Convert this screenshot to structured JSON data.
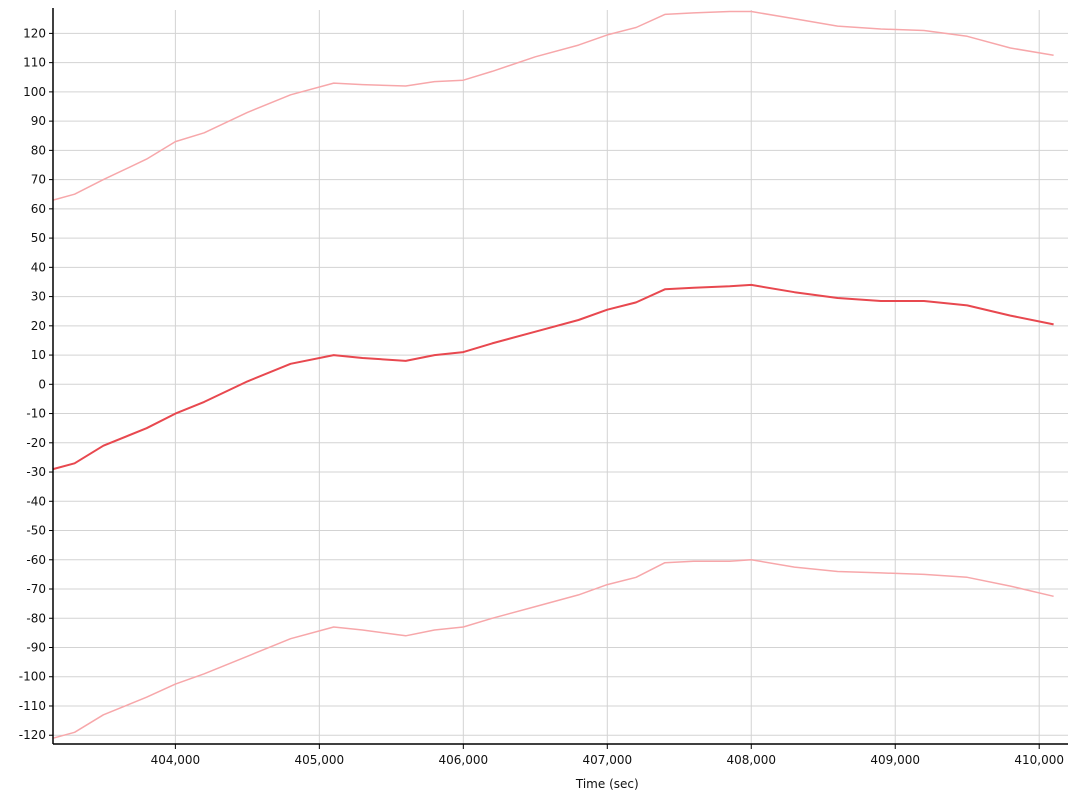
{
  "chart_data": {
    "type": "line",
    "xlabel": "Time (sec)",
    "ylabel": "",
    "xlim": [
      403150,
      410200
    ],
    "ylim": [
      -123,
      128
    ],
    "x_ticks": [
      404000,
      405000,
      406000,
      407000,
      408000,
      409000,
      410000
    ],
    "x_tick_labels": [
      "404,000",
      "405,000",
      "406,000",
      "407,000",
      "408,000",
      "409,000",
      "410,000"
    ],
    "y_ticks": [
      120,
      110,
      100,
      90,
      80,
      70,
      60,
      50,
      40,
      30,
      20,
      10,
      0,
      -10,
      -20,
      -30,
      -40,
      -50,
      -60,
      -70,
      -80,
      -90,
      -100,
      -110,
      -120
    ],
    "grid": true,
    "legend": "none",
    "colors": {
      "primary": "#e8484f",
      "bound": "#f7a7aa",
      "grid": "#d3d3d3",
      "axis": "#000000"
    },
    "x": [
      403150,
      403300,
      403500,
      403800,
      404000,
      404200,
      404500,
      404800,
      405100,
      405300,
      405600,
      405800,
      406000,
      406200,
      406500,
      406800,
      407000,
      407200,
      407400,
      407600,
      407850,
      408000,
      408300,
      408600,
      408900,
      409200,
      409500,
      409800,
      410100
    ],
    "series": [
      {
        "values": [
          63,
          65,
          70,
          77,
          83,
          86,
          93,
          99,
          103,
          102.5,
          102,
          103.5,
          104,
          107,
          112,
          116,
          119.5,
          122,
          126.5,
          127,
          127.5,
          127.5,
          125,
          122.5,
          121.5,
          121,
          119,
          115,
          112.5
        ]
      },
      {
        "values": [
          -29,
          -27,
          -21,
          -15,
          -10,
          -6,
          1,
          7,
          10,
          9,
          8,
          10,
          11,
          14,
          18,
          22,
          25.5,
          28,
          32.5,
          33,
          33.5,
          34,
          31.5,
          29.5,
          28.5,
          28.5,
          27,
          23.5,
          20.5
        ]
      },
      {
        "values": [
          -121,
          -119,
          -113,
          -107,
          -102.5,
          -99,
          -93,
          -87,
          -83,
          -84,
          -86,
          -84,
          -83,
          -80,
          -76,
          -72,
          -68.5,
          -66,
          -61,
          -60.5,
          -60.5,
          -60,
          -62.5,
          -64,
          -64.5,
          -65,
          -66,
          -69,
          -72.5
        ]
      }
    ]
  }
}
